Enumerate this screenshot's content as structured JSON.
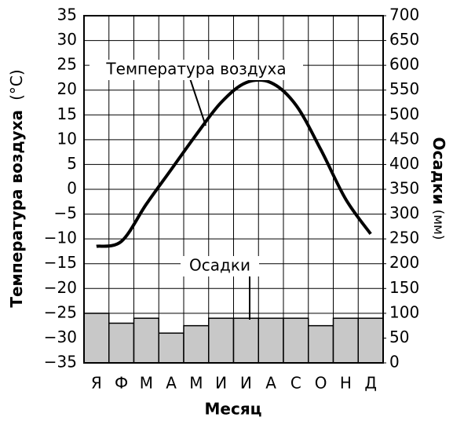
{
  "chart_data": {
    "type": "combo",
    "x_label": "Месяц",
    "y_label": "Температура воздуха",
    "y_label_unit": "(°С)",
    "y2_label": "Осадки",
    "y2_label_unit": "(мм)",
    "categories": [
      "Я",
      "Ф",
      "М",
      "А",
      "М",
      "И",
      "И",
      "А",
      "С",
      "О",
      "Н",
      "Д"
    ],
    "series": [
      {
        "name": "Осадки",
        "type": "bar",
        "axis": "y2",
        "color": "#c8c8c8",
        "values": [
          100,
          80,
          90,
          60,
          75,
          90,
          90,
          90,
          90,
          75,
          90,
          90
        ]
      },
      {
        "name": "Температура воздуха",
        "type": "line",
        "color": "#000000",
        "values": [
          -11.5,
          -10.5,
          -3,
          4,
          11,
          17.5,
          21.5,
          21.5,
          17,
          8,
          -2,
          -9
        ]
      }
    ],
    "ylim": [
      -35,
      35
    ],
    "yticks": [
      {
        "value": -35,
        "label": "−35"
      },
      {
        "value": -30,
        "label": "−30"
      },
      {
        "value": -25,
        "label": "−25"
      },
      {
        "value": -20,
        "label": "−20"
      },
      {
        "value": -15,
        "label": "−15"
      },
      {
        "value": -10,
        "label": "−10"
      },
      {
        "value": -5,
        "label": "−5"
      },
      0,
      5,
      10,
      15,
      20,
      25,
      30,
      35
    ],
    "y2lim": [
      0,
      700
    ],
    "y2ticks": [
      0,
      50,
      100,
      150,
      200,
      250,
      300,
      350,
      400,
      450,
      500,
      550,
      600,
      650,
      700
    ],
    "grid": true
  }
}
